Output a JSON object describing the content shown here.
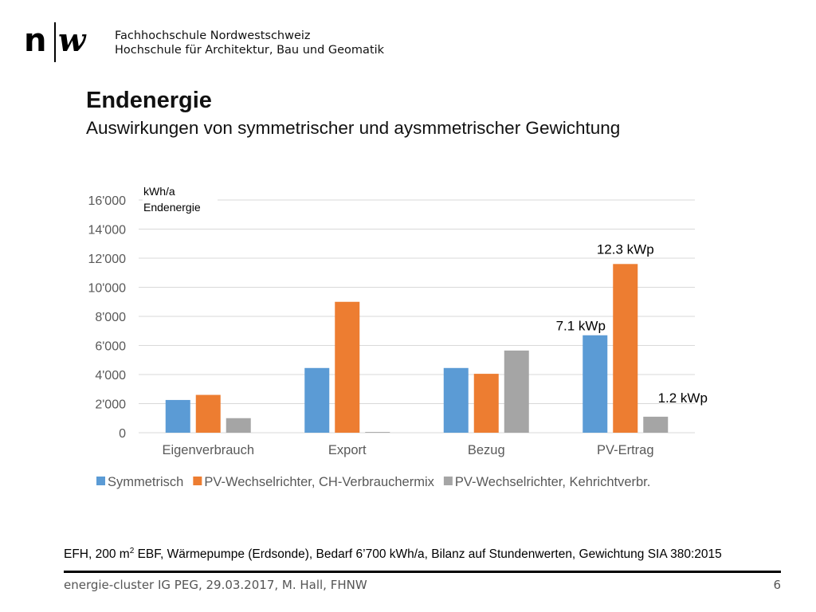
{
  "header": {
    "logo_text": "n|w",
    "institution_line1": "Fachhochschule Nordwestschweiz",
    "institution_line2": "Hochschule für Architektur, Bau und Geomatik"
  },
  "slide": {
    "title": "Endenergie",
    "subtitle": "Auswirkungen von symmetrischer und aysmmetrischer Gewichtung"
  },
  "chart_data": {
    "type": "bar",
    "unit_label_line1": "kWh/a",
    "unit_label_line2": "Endenergie",
    "categories": [
      "Eigenverbrauch",
      "Export",
      "Bezug",
      "PV-Ertrag"
    ],
    "series": [
      {
        "name": "Symmetrisch",
        "color": "#5B9BD5",
        "values": [
          2250,
          4450,
          4450,
          6700
        ]
      },
      {
        "name": "PV-Wechselrichter, CH-Verbrauchermix",
        "color": "#ED7D31",
        "values": [
          2600,
          9000,
          4050,
          11600
        ]
      },
      {
        "name": "PV-Wechselrichter, Kehrichtverbr.",
        "color": "#A5A5A5",
        "values": [
          1000,
          50,
          5650,
          1100
        ]
      }
    ],
    "ylim": [
      0,
      16000
    ],
    "yticks": [
      0,
      2000,
      4000,
      6000,
      8000,
      10000,
      12000,
      14000,
      16000
    ],
    "ytick_labels": [
      "0",
      "2'000",
      "4'000",
      "6'000",
      "8'000",
      "10'000",
      "12'000",
      "14'000",
      "16'000"
    ],
    "grid": true,
    "legend_position": "bottom",
    "annotations": [
      {
        "text": "12.3 kWp",
        "category": "PV-Ertrag",
        "series": "PV-Wechselrichter, CH-Verbrauchermix"
      },
      {
        "text": "7.1 kWp",
        "category": "PV-Ertrag",
        "series": "Symmetrisch"
      },
      {
        "text": "1.2 kWp",
        "category": "PV-Ertrag",
        "series": "PV-Wechselrichter, Kehrichtverbr."
      }
    ]
  },
  "footnote": {
    "prefix": "EFH, 200 m",
    "superscript": "2",
    "suffix": " EBF, Wärmepumpe (Erdsonde), Bedarf 6’700 kWh/a, Bilanz auf Stundenwerten, Gewichtung SIA 380:2015"
  },
  "footer": {
    "text": "energie-cluster IG PEG, 29.03.2017, M. Hall, FHNW",
    "page_number": "6"
  }
}
